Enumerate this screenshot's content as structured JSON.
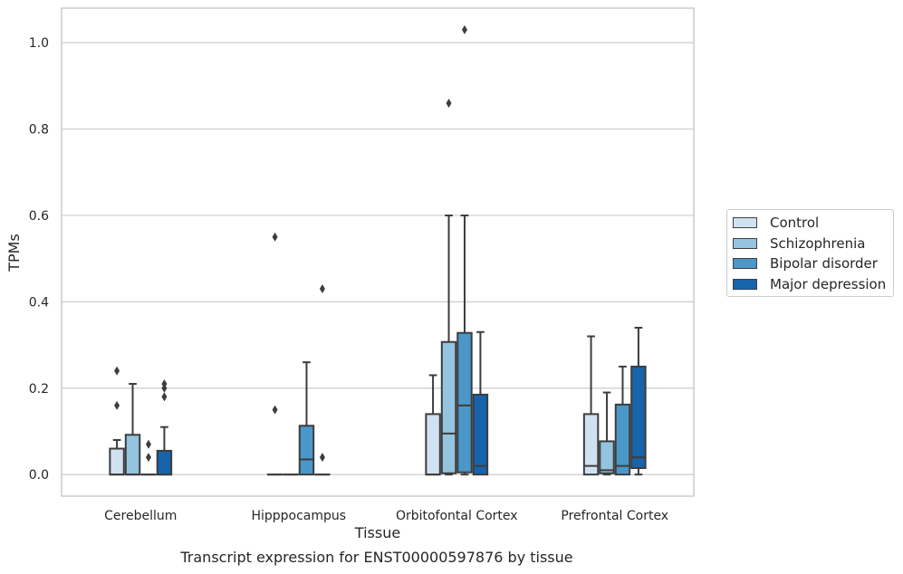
{
  "chart_data": {
    "type": "box",
    "xlabel": "Tissue",
    "ylabel": "TPMs",
    "ylim": [
      -0.05,
      1.08
    ],
    "yticks": [
      0.0,
      0.2,
      0.4,
      0.6,
      0.8,
      1.0
    ],
    "ytick_labels": [
      "0.0",
      "0.2",
      "0.4",
      "0.6",
      "0.8",
      "1.0"
    ],
    "grid": "horizontal",
    "legend_position": "right",
    "categories": [
      "Cerebellum",
      "Hipppocampus",
      "Orbitofontal Cortex",
      "Prefrontal Cortex"
    ],
    "series": [
      {
        "name": "Control",
        "color": "#d0e1f2",
        "boxes": [
          {
            "min": 0.0,
            "q1": 0.0,
            "median": 0.0,
            "q3": 0.06,
            "max": 0.08,
            "outliers": [
              0.16,
              0.24
            ]
          },
          {
            "min": 0.0,
            "q1": 0.0,
            "median": 0.0,
            "q3": 0.0,
            "max": 0.0,
            "outliers": [
              0.15,
              0.55
            ]
          },
          {
            "min": 0.0,
            "q1": 0.0,
            "median": 0.0,
            "q3": 0.14,
            "max": 0.23,
            "outliers": []
          },
          {
            "min": 0.0,
            "q1": 0.0,
            "median": 0.02,
            "q3": 0.14,
            "max": 0.32,
            "outliers": []
          }
        ]
      },
      {
        "name": "Schizophrenia",
        "color": "#94c4df",
        "boxes": [
          {
            "min": 0.0,
            "q1": 0.0,
            "median": 0.0,
            "q3": 0.092,
            "max": 0.21,
            "outliers": []
          },
          {
            "min": 0.0,
            "q1": 0.0,
            "median": 0.0,
            "q3": 0.0,
            "max": 0.0,
            "outliers": []
          },
          {
            "min": 0.0,
            "q1": 0.003,
            "median": 0.095,
            "q3": 0.307,
            "max": 0.6,
            "outliers": [
              0.86
            ]
          },
          {
            "min": 0.0,
            "q1": 0.003,
            "median": 0.01,
            "q3": 0.077,
            "max": 0.19,
            "outliers": []
          }
        ]
      },
      {
        "name": "Bipolar disorder",
        "color": "#4a98c9",
        "boxes": [
          {
            "min": 0.0,
            "q1": 0.0,
            "median": 0.0,
            "q3": 0.0,
            "max": 0.0,
            "outliers": [
              0.04,
              0.07
            ]
          },
          {
            "min": 0.0,
            "q1": 0.0,
            "median": 0.035,
            "q3": 0.113,
            "max": 0.26,
            "outliers": []
          },
          {
            "min": 0.0,
            "q1": 0.005,
            "median": 0.16,
            "q3": 0.328,
            "max": 0.6,
            "outliers": [
              1.03
            ]
          },
          {
            "min": 0.0,
            "q1": 0.0,
            "median": 0.02,
            "q3": 0.162,
            "max": 0.25,
            "outliers": []
          }
        ]
      },
      {
        "name": "Major depression",
        "color": "#1764ab",
        "boxes": [
          {
            "min": 0.0,
            "q1": 0.0,
            "median": 0.0,
            "q3": 0.055,
            "max": 0.11,
            "outliers": [
              0.18,
              0.2,
              0.21
            ]
          },
          {
            "min": 0.0,
            "q1": 0.0,
            "median": 0.0,
            "q3": 0.0,
            "max": 0.0,
            "outliers": [
              0.04,
              0.43
            ]
          },
          {
            "min": 0.0,
            "q1": 0.0,
            "median": 0.02,
            "q3": 0.185,
            "max": 0.33,
            "outliers": []
          },
          {
            "min": 0.0,
            "q1": 0.015,
            "median": 0.04,
            "q3": 0.25,
            "max": 0.34,
            "outliers": []
          }
        ]
      }
    ]
  },
  "caption": "Transcript expression for ENST00000597876 by tissue"
}
